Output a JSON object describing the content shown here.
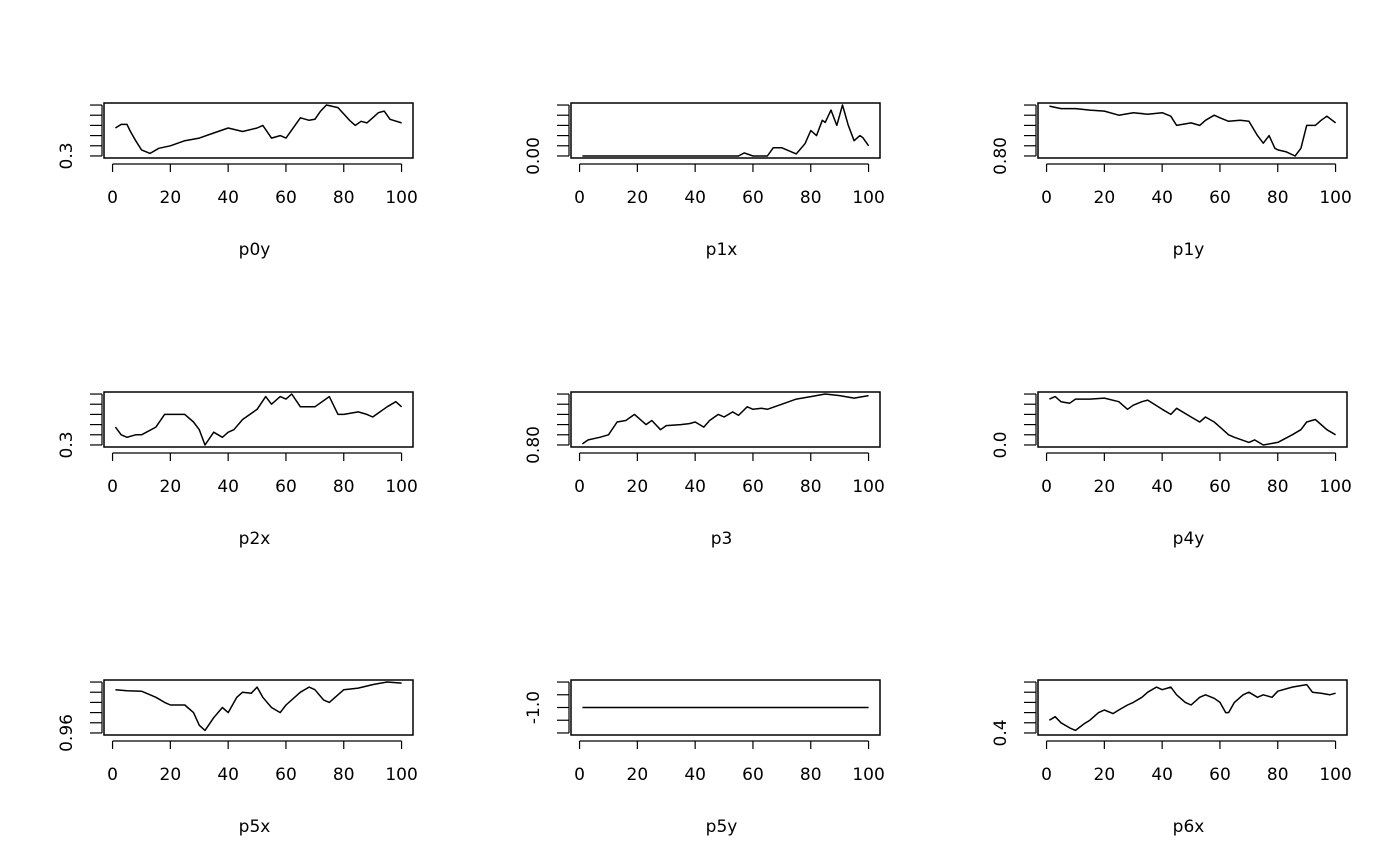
{
  "chart_data": [
    {
      "type": "line",
      "xlabel": "p0y",
      "xlim": [
        1,
        100
      ],
      "xticks": [
        0,
        20,
        40,
        60,
        80,
        100
      ],
      "ylim": [
        0.3,
        0.4
      ],
      "yticks": [
        0.3,
        0.32,
        0.34,
        0.36,
        0.38,
        0.4
      ],
      "ytick_label": {
        "value": 0.3,
        "text": "0.3"
      },
      "x": [
        1,
        3,
        5,
        6,
        8,
        10,
        13,
        16,
        20,
        25,
        30,
        35,
        40,
        45,
        50,
        52,
        55,
        58,
        60,
        65,
        68,
        70,
        72,
        74,
        78,
        82,
        84,
        86,
        88,
        90,
        92,
        94,
        96,
        100
      ],
      "y": [
        0.355,
        0.362,
        0.362,
        0.35,
        0.33,
        0.312,
        0.305,
        0.315,
        0.32,
        0.33,
        0.335,
        0.345,
        0.355,
        0.348,
        0.355,
        0.36,
        0.335,
        0.34,
        0.335,
        0.375,
        0.37,
        0.372,
        0.388,
        0.4,
        0.395,
        0.37,
        0.36,
        0.368,
        0.365,
        0.375,
        0.385,
        0.388,
        0.372,
        0.365
      ]
    },
    {
      "type": "line",
      "xlabel": "p1x",
      "xlim": [
        1,
        100
      ],
      "xticks": [
        0,
        20,
        40,
        60,
        80,
        100
      ],
      "ylim": [
        0.0,
        0.05
      ],
      "yticks": [
        0.0,
        0.01,
        0.02,
        0.03,
        0.04,
        0.05
      ],
      "ytick_label": {
        "value": 0.0,
        "text": "0.00"
      },
      "x": [
        1,
        20,
        40,
        55,
        57,
        60,
        65,
        67,
        70,
        75,
        78,
        80,
        82,
        84,
        85,
        87,
        89,
        91,
        93,
        95,
        97,
        98,
        100
      ],
      "y": [
        0,
        0,
        0,
        0,
        0.003,
        0,
        0,
        0.008,
        0.008,
        0.002,
        0.012,
        0.025,
        0.02,
        0.035,
        0.033,
        0.045,
        0.03,
        0.05,
        0.03,
        0.015,
        0.02,
        0.018,
        0.01
      ]
    },
    {
      "type": "line",
      "xlabel": "p1y",
      "xlim": [
        1,
        100
      ],
      "xticks": [
        0,
        20,
        40,
        60,
        80,
        100
      ],
      "ylim": [
        0.8,
        0.9
      ],
      "yticks": [
        0.8,
        0.82,
        0.84,
        0.86,
        0.88,
        0.9
      ],
      "ytick_label": {
        "value": 0.8,
        "text": "0.80"
      },
      "x": [
        1,
        5,
        10,
        15,
        20,
        25,
        30,
        35,
        40,
        43,
        45,
        50,
        53,
        55,
        58,
        60,
        63,
        67,
        70,
        73,
        75,
        77,
        79,
        80,
        83,
        86,
        88,
        90,
        93,
        95,
        97,
        100
      ],
      "y": [
        0.898,
        0.893,
        0.893,
        0.89,
        0.888,
        0.88,
        0.885,
        0.882,
        0.885,
        0.878,
        0.86,
        0.865,
        0.86,
        0.87,
        0.88,
        0.875,
        0.868,
        0.87,
        0.868,
        0.84,
        0.825,
        0.84,
        0.815,
        0.812,
        0.808,
        0.8,
        0.815,
        0.86,
        0.86,
        0.87,
        0.878,
        0.865
      ]
    },
    {
      "type": "line",
      "xlabel": "p2x",
      "xlim": [
        1,
        100
      ],
      "xticks": [
        0,
        20,
        40,
        60,
        80,
        100
      ],
      "ylim": [
        0.3,
        0.4
      ],
      "yticks": [
        0.3,
        0.32,
        0.34,
        0.36,
        0.38,
        0.4
      ],
      "ytick_label": {
        "value": 0.3,
        "text": "0.3"
      },
      "x": [
        1,
        3,
        5,
        8,
        10,
        15,
        18,
        20,
        25,
        28,
        30,
        32,
        35,
        38,
        40,
        42,
        45,
        50,
        53,
        55,
        58,
        60,
        62,
        65,
        70,
        75,
        78,
        80,
        85,
        88,
        90,
        95,
        98,
        100
      ],
      "y": [
        0.335,
        0.32,
        0.315,
        0.32,
        0.32,
        0.335,
        0.36,
        0.36,
        0.36,
        0.345,
        0.33,
        0.3,
        0.325,
        0.315,
        0.325,
        0.33,
        0.35,
        0.37,
        0.395,
        0.38,
        0.395,
        0.39,
        0.4,
        0.375,
        0.375,
        0.395,
        0.36,
        0.36,
        0.365,
        0.36,
        0.355,
        0.375,
        0.385,
        0.375
      ]
    },
    {
      "type": "line",
      "xlabel": "p3",
      "xlim": [
        1,
        100
      ],
      "xticks": [
        0,
        20,
        40,
        60,
        80,
        100
      ],
      "ylim": [
        0.8,
        0.9
      ],
      "yticks": [
        0.8,
        0.82,
        0.84,
        0.86,
        0.88,
        0.9
      ],
      "ytick_label": {
        "value": 0.8,
        "text": "0.80"
      },
      "x": [
        1,
        3,
        7,
        10,
        13,
        16,
        19,
        23,
        25,
        28,
        30,
        35,
        38,
        40,
        43,
        45,
        48,
        50,
        53,
        55,
        58,
        60,
        63,
        65,
        70,
        75,
        80,
        85,
        90,
        95,
        100
      ],
      "y": [
        0.802,
        0.81,
        0.815,
        0.82,
        0.845,
        0.848,
        0.86,
        0.84,
        0.848,
        0.83,
        0.838,
        0.84,
        0.842,
        0.845,
        0.835,
        0.848,
        0.86,
        0.855,
        0.865,
        0.858,
        0.875,
        0.87,
        0.872,
        0.87,
        0.88,
        0.89,
        0.895,
        0.9,
        0.897,
        0.892,
        0.897
      ]
    },
    {
      "type": "line",
      "xlabel": "p4y",
      "xlim": [
        1,
        100
      ],
      "xticks": [
        0,
        20,
        40,
        60,
        80,
        100
      ],
      "ylim": [
        0.0,
        0.1
      ],
      "yticks": [
        0.0,
        0.02,
        0.04,
        0.06,
        0.08,
        0.1
      ],
      "ytick_label": {
        "value": 0.0,
        "text": "0.0"
      },
      "x": [
        1,
        3,
        5,
        8,
        10,
        15,
        20,
        25,
        28,
        30,
        33,
        35,
        40,
        43,
        45,
        50,
        53,
        55,
        58,
        60,
        63,
        65,
        70,
        72,
        75,
        80,
        85,
        88,
        90,
        93,
        97,
        100
      ],
      "y": [
        0.09,
        0.095,
        0.085,
        0.082,
        0.09,
        0.09,
        0.092,
        0.085,
        0.07,
        0.078,
        0.085,
        0.088,
        0.07,
        0.06,
        0.072,
        0.055,
        0.045,
        0.055,
        0.045,
        0.035,
        0.02,
        0.015,
        0.005,
        0.01,
        0.0,
        0.005,
        0.02,
        0.03,
        0.045,
        0.05,
        0.03,
        0.02
      ]
    },
    {
      "type": "line",
      "xlabel": "p5x",
      "xlim": [
        1,
        100
      ],
      "xticks": [
        0,
        20,
        40,
        60,
        80,
        100
      ],
      "ylim": [
        0.96,
        0.97
      ],
      "yticks": [
        0.96,
        0.962,
        0.964,
        0.966,
        0.968,
        0.97
      ],
      "ytick_label": {
        "value": 0.96,
        "text": "0.96"
      },
      "x": [
        1,
        5,
        10,
        13,
        15,
        18,
        20,
        25,
        28,
        30,
        32,
        35,
        38,
        40,
        43,
        45,
        48,
        50,
        52,
        55,
        58,
        60,
        65,
        68,
        70,
        73,
        75,
        80,
        85,
        90,
        95,
        100
      ],
      "y": [
        0.9685,
        0.9683,
        0.9682,
        0.9675,
        0.967,
        0.966,
        0.9655,
        0.9655,
        0.964,
        0.9615,
        0.9605,
        0.963,
        0.965,
        0.964,
        0.967,
        0.968,
        0.9678,
        0.969,
        0.967,
        0.965,
        0.964,
        0.9655,
        0.968,
        0.969,
        0.9685,
        0.9665,
        0.966,
        0.9685,
        0.9688,
        0.9695,
        0.97,
        0.9698
      ]
    },
    {
      "type": "line",
      "xlabel": "p5y",
      "xlim": [
        1,
        100
      ],
      "xticks": [
        0,
        20,
        40,
        60,
        80,
        100
      ],
      "ylim": [
        -1.04,
        -0.96
      ],
      "yticks": [
        -1.04,
        -1.02,
        -1.0,
        -0.98,
        -0.96
      ],
      "ytick_label": {
        "value": -1.0,
        "text": "-1.0"
      },
      "x": [
        1,
        100
      ],
      "y": [
        -1.0,
        -1.0
      ]
    },
    {
      "type": "line",
      "xlabel": "p6x",
      "xlim": [
        1,
        100
      ],
      "xticks": [
        0,
        20,
        40,
        60,
        80,
        100
      ],
      "ylim": [
        0.4,
        0.5
      ],
      "yticks": [
        0.4,
        0.42,
        0.44,
        0.46,
        0.48,
        0.5
      ],
      "ytick_label": {
        "value": 0.4,
        "text": "0.4"
      },
      "x": [
        1,
        3,
        5,
        8,
        10,
        13,
        15,
        18,
        20,
        23,
        25,
        28,
        30,
        33,
        35,
        38,
        40,
        43,
        45,
        48,
        50,
        53,
        55,
        58,
        60,
        62,
        63,
        65,
        68,
        70,
        73,
        75,
        78,
        80,
        85,
        90,
        92,
        95,
        98,
        100
      ],
      "y": [
        0.425,
        0.432,
        0.42,
        0.41,
        0.405,
        0.418,
        0.425,
        0.44,
        0.445,
        0.438,
        0.445,
        0.455,
        0.46,
        0.47,
        0.48,
        0.49,
        0.485,
        0.49,
        0.475,
        0.46,
        0.455,
        0.47,
        0.475,
        0.468,
        0.46,
        0.44,
        0.44,
        0.46,
        0.475,
        0.48,
        0.47,
        0.475,
        0.47,
        0.482,
        0.49,
        0.495,
        0.48,
        0.478,
        0.475,
        0.478
      ]
    }
  ]
}
